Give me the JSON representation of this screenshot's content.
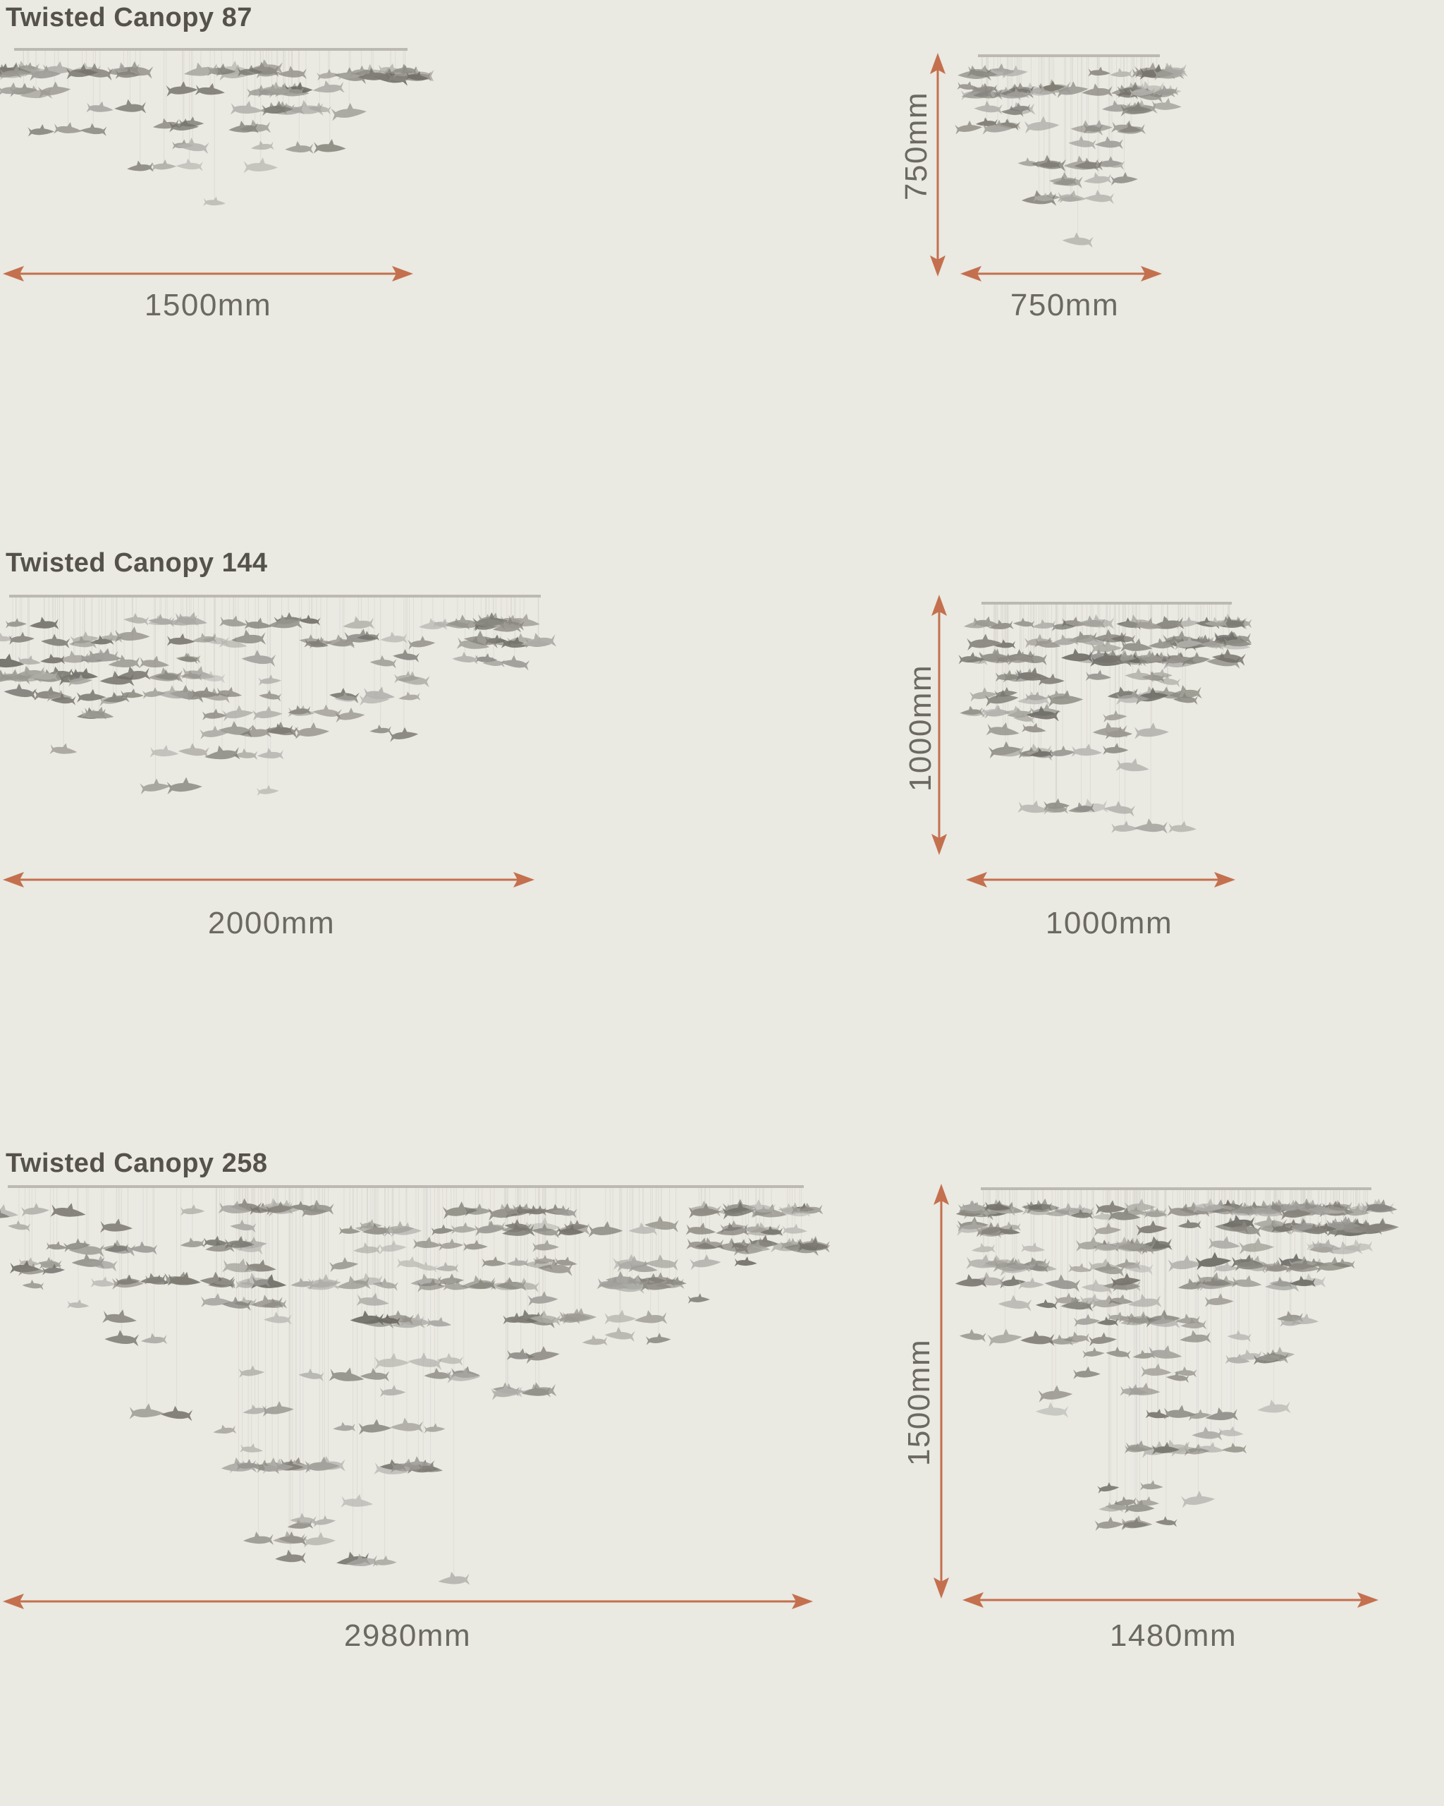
{
  "colors": {
    "background": "#EAE9E2",
    "arrow": "#C4704E",
    "title_text": "#55524B",
    "dimension_text": "#6B6962",
    "canopy_bar": "#BBB9B2",
    "wire": "#D9D8D1",
    "fish_dark": "#6E6C66",
    "fish_light": "#A3A19B"
  },
  "products": [
    {
      "title": "Twisted Canopy 87",
      "pieces": 87,
      "plan_view": {
        "width_label": "1500mm"
      },
      "elevation_view": {
        "height_label": "750mm",
        "width_label": "750mm"
      }
    },
    {
      "title": "Twisted Canopy 144",
      "pieces": 144,
      "plan_view": {
        "width_label": "2000mm"
      },
      "elevation_view": {
        "height_label": "1000mm",
        "width_label": "1000mm"
      }
    },
    {
      "title": "Twisted Canopy 258",
      "pieces": 258,
      "plan_view": {
        "width_label": "2980mm"
      },
      "elevation_view": {
        "height_label": "1500mm",
        "width_label": "1480mm"
      }
    }
  ]
}
